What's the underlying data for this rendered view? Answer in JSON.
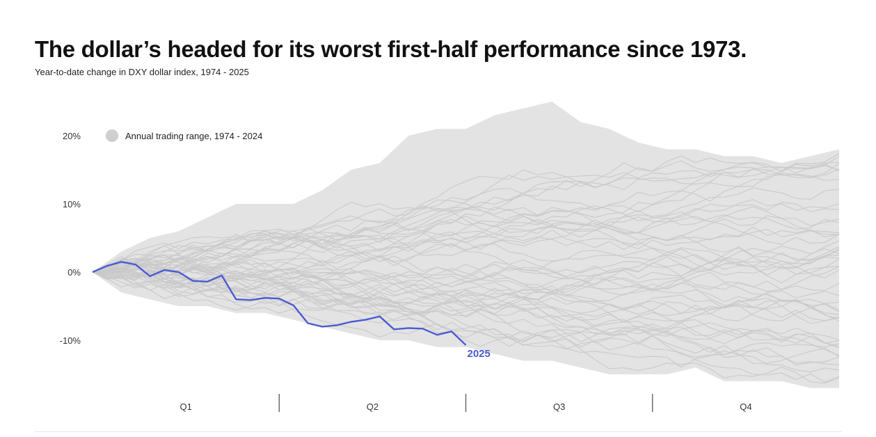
{
  "chart_data": {
    "type": "line",
    "title": "The dollar’s headed for its worst first-half performance since 1973.",
    "subtitle": "Year-to-date change in DXY dollar index, 1974 - 2025",
    "ylabel": "",
    "xlabel": "",
    "ylim": [
      -18,
      26
    ],
    "xlim": [
      0,
      52
    ],
    "y_ticks": [
      {
        "value": 20,
        "label": "20%"
      },
      {
        "value": 10,
        "label": "10%"
      },
      {
        "value": 0,
        "label": "0%"
      },
      {
        "value": -10,
        "label": "-10%"
      }
    ],
    "x_categories": [
      "Q1",
      "Q2",
      "Q3",
      "Q4"
    ],
    "quarter_week_bounds": [
      0,
      13,
      26,
      39,
      52
    ],
    "legend": {
      "label": "Annual trading range, 1974 - 2024",
      "placement": "top-left"
    },
    "range_band": {
      "name": "Annual trading range, 1974 - 2024",
      "x_weeks": [
        0,
        2,
        4,
        6,
        8,
        10,
        12,
        14,
        16,
        18,
        20,
        22,
        24,
        26,
        28,
        30,
        32,
        34,
        36,
        38,
        40,
        42,
        44,
        46,
        48,
        50,
        52
      ],
      "upper": [
        0,
        3,
        5,
        6,
        8,
        10,
        10,
        10,
        12,
        15,
        16,
        20,
        21,
        21,
        23,
        24,
        25,
        22,
        21,
        19,
        18,
        18,
        17,
        17,
        16,
        17,
        18
      ],
      "lower": [
        0,
        -3,
        -4,
        -5,
        -5,
        -6,
        -6,
        -7,
        -8,
        -9,
        -10,
        -10,
        -11,
        -11,
        -12,
        -13,
        -13,
        -14,
        -15,
        -15,
        -15,
        -14,
        -16,
        -16,
        -16,
        -17,
        -17
      ]
    },
    "highlight_series": {
      "name": "2025",
      "color": "#4a5bd3",
      "x_weeks": [
        0,
        1,
        2,
        3,
        4,
        5,
        6,
        7,
        8,
        9,
        10,
        11,
        12,
        13,
        14,
        15,
        16,
        17,
        18,
        19,
        20,
        21,
        22,
        23,
        24,
        25,
        26
      ],
      "values": [
        0,
        0.9,
        1.5,
        1.1,
        -0.6,
        0.3,
        0.0,
        -1.3,
        -1.4,
        -0.5,
        -4.0,
        -4.1,
        -3.8,
        -3.9,
        -4.9,
        -7.5,
        -8.0,
        -7.8,
        -7.3,
        -7.0,
        -6.5,
        -8.4,
        -8.2,
        -8.3,
        -9.2,
        -8.7,
        -10.7
      ]
    },
    "background_series_color": "#c9c9c9",
    "band_color": "#e3e3e3",
    "grid": false
  }
}
